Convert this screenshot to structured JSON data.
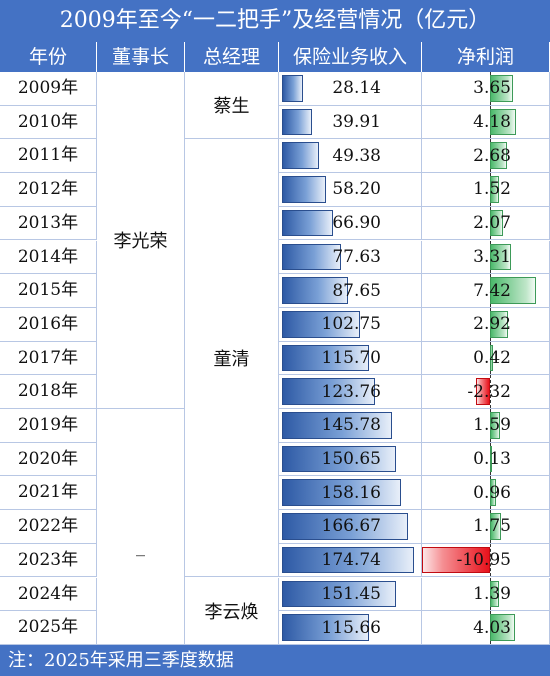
{
  "title": "2009年至今“一二把手”及经营情况（亿元）",
  "headers": [
    "年份",
    "董事长",
    "总经理",
    "保险业务收入",
    "净利润"
  ],
  "footer": "注：2025年采用三季度数据",
  "colors": {
    "header_bg": "#4472c4",
    "positive": "#4bb96b",
    "negative": "#e8121c",
    "revenue": "#2e5aa5"
  },
  "chairmen": [
    {
      "name": "李光荣",
      "from": "2009年",
      "to": "2018年"
    },
    {
      "name": "_",
      "from": "2019年",
      "to": "2025年"
    }
  ],
  "managers": [
    {
      "name": "蔡生",
      "from": "2009年",
      "to": "2010年"
    },
    {
      "name": "童清",
      "from": "2011年",
      "to": "2023年"
    },
    {
      "name": "李云焕",
      "from": "2024年",
      "to": "2025年"
    }
  ],
  "rows": [
    {
      "year": "2009年",
      "revenue": 28.14,
      "net_profit": 3.65
    },
    {
      "year": "2010年",
      "revenue": 39.91,
      "net_profit": 4.18
    },
    {
      "year": "2011年",
      "revenue": 49.38,
      "net_profit": 2.68
    },
    {
      "year": "2012年",
      "revenue": 58.2,
      "net_profit": 1.52
    },
    {
      "year": "2013年",
      "revenue": 66.9,
      "net_profit": 2.07
    },
    {
      "year": "2014年",
      "revenue": 77.63,
      "net_profit": 3.31
    },
    {
      "year": "2015年",
      "revenue": 87.65,
      "net_profit": 7.42
    },
    {
      "year": "2016年",
      "revenue": 102.75,
      "net_profit": 2.92
    },
    {
      "year": "2017年",
      "revenue": 115.7,
      "net_profit": 0.42
    },
    {
      "year": "2018年",
      "revenue": 123.76,
      "net_profit": -2.32
    },
    {
      "year": "2019年",
      "revenue": 145.78,
      "net_profit": 1.59
    },
    {
      "year": "2020年",
      "revenue": 150.65,
      "net_profit": 0.13
    },
    {
      "year": "2021年",
      "revenue": 158.16,
      "net_profit": 0.96
    },
    {
      "year": "2022年",
      "revenue": 166.67,
      "net_profit": 1.75
    },
    {
      "year": "2023年",
      "revenue": 174.74,
      "net_profit": -10.95
    },
    {
      "year": "2024年",
      "revenue": 151.45,
      "net_profit": 1.39
    },
    {
      "year": "2025年",
      "revenue": 115.66,
      "net_profit": 4.03
    }
  ]
}
